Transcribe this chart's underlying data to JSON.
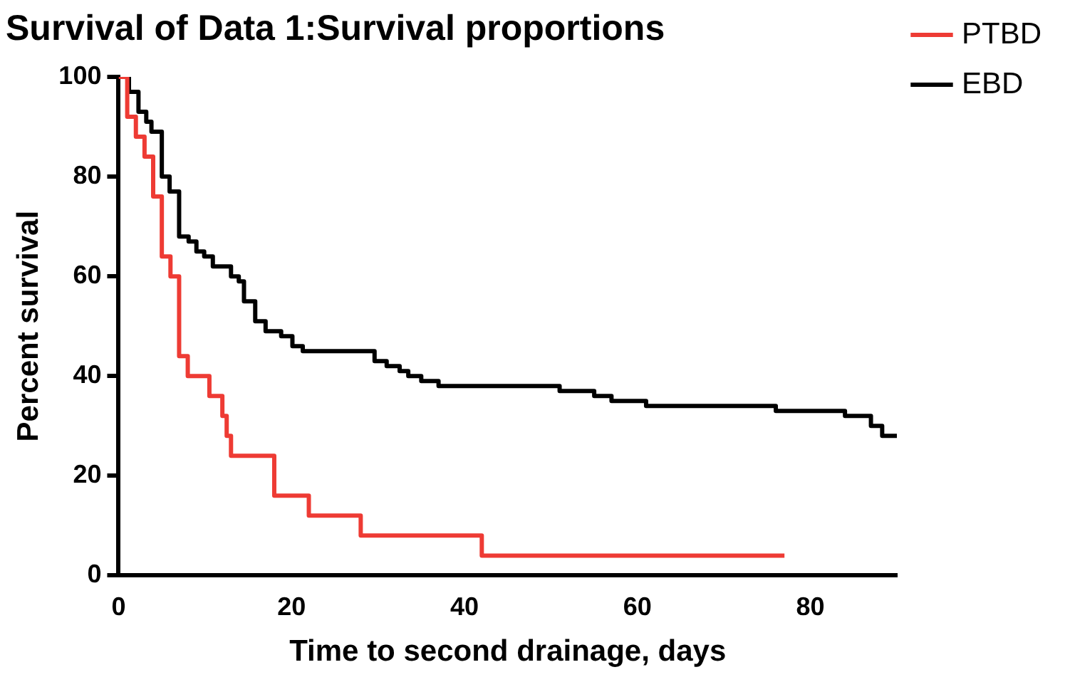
{
  "chart_data": {
    "type": "step",
    "title": "Survival of Data 1:Survival proportions",
    "xlabel": "Time to second drainage, days",
    "ylabel": "Percent survival",
    "xlim": [
      0,
      90
    ],
    "xticks": [
      0,
      20,
      40,
      60,
      80
    ],
    "ylim": [
      0,
      100
    ],
    "yticks": [
      0,
      20,
      40,
      60,
      80,
      100
    ],
    "grid": false,
    "legend": "top right",
    "marker": "none",
    "line_style": "solid",
    "series": [
      {
        "name": "PTBD",
        "color": "#ee3b34",
        "x": [
          0,
          1,
          2,
          3,
          4,
          5,
          6,
          7,
          8,
          10.5,
          12,
          12.5,
          13,
          18,
          22,
          28,
          42,
          77
        ],
        "values": [
          100,
          92,
          88,
          84,
          76,
          64,
          60,
          44,
          40,
          36,
          32,
          28,
          24,
          16,
          12,
          8,
          4,
          4
        ]
      },
      {
        "name": "EBD",
        "color": "#000000",
        "x": [
          0,
          1.2,
          2.3,
          3.2,
          3.8,
          5,
          5.9,
          7,
          8.1,
          9,
          9.9,
          10.9,
          13,
          13.9,
          14.5,
          15.8,
          17,
          18.8,
          20.1,
          21.3,
          29.6,
          31,
          32.5,
          33.5,
          35,
          37,
          51,
          55,
          57,
          61,
          76,
          84,
          87,
          88.3,
          90
        ],
        "values": [
          100,
          97,
          93,
          91,
          89,
          80,
          77,
          68,
          67,
          65,
          64,
          62,
          60,
          59,
          55,
          51,
          49,
          48,
          46,
          45,
          43,
          42,
          41,
          40,
          39,
          38,
          37,
          36,
          35,
          34,
          33,
          32,
          30,
          28,
          28
        ]
      }
    ]
  }
}
